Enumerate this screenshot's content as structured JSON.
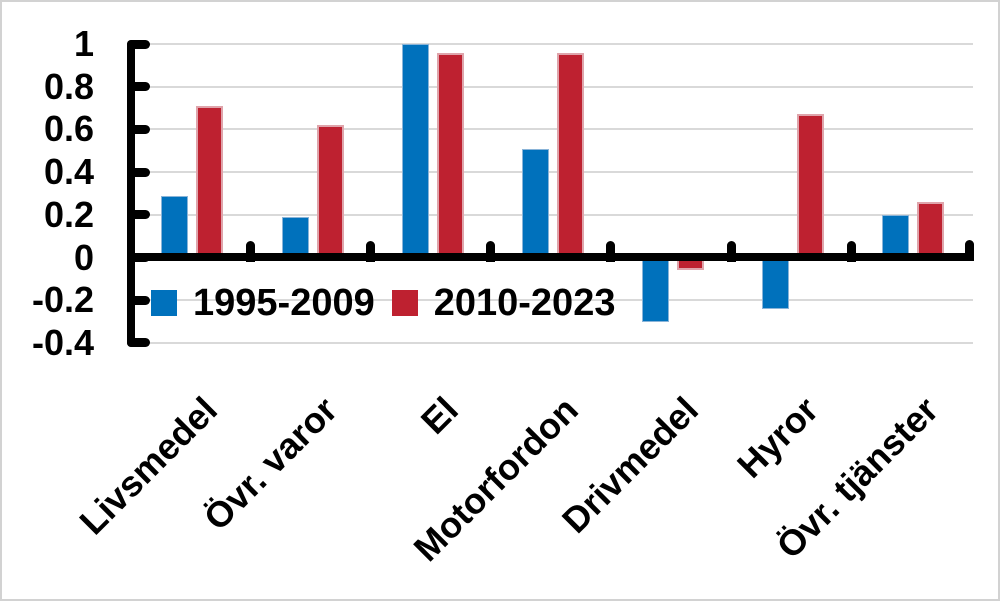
{
  "chart_data": {
    "type": "bar",
    "title": "",
    "categories": [
      "Livsmedel",
      "Övr. varor",
      "El",
      "Motorfordon",
      "Drivmedel",
      "Hyror",
      "Övr. tjänster"
    ],
    "series": [
      {
        "name": "1995-2009",
        "color": "#0071bc",
        "values": [
          0.29,
          0.19,
          1.0,
          0.51,
          -0.3,
          -0.24,
          0.2
        ]
      },
      {
        "name": "2010-2023",
        "color": "#be2130",
        "values": [
          0.71,
          0.62,
          0.96,
          0.96,
          -0.06,
          0.67,
          0.26
        ]
      }
    ],
    "y_axis": {
      "min": -0.4,
      "max": 1.0,
      "tick_step": 0.2,
      "tick_labels": [
        "1",
        "0.8",
        "0.6",
        "0.4",
        "0.2",
        "0",
        "-0.2",
        "-0.4"
      ]
    },
    "x_axis": {
      "label": ""
    },
    "grid": true,
    "legend_position": "below-zero-line-left",
    "colors": {
      "axis": "#000000",
      "gridline": "#d9d9d9",
      "background": "#ffffff",
      "border": "#d2d2d2"
    }
  }
}
